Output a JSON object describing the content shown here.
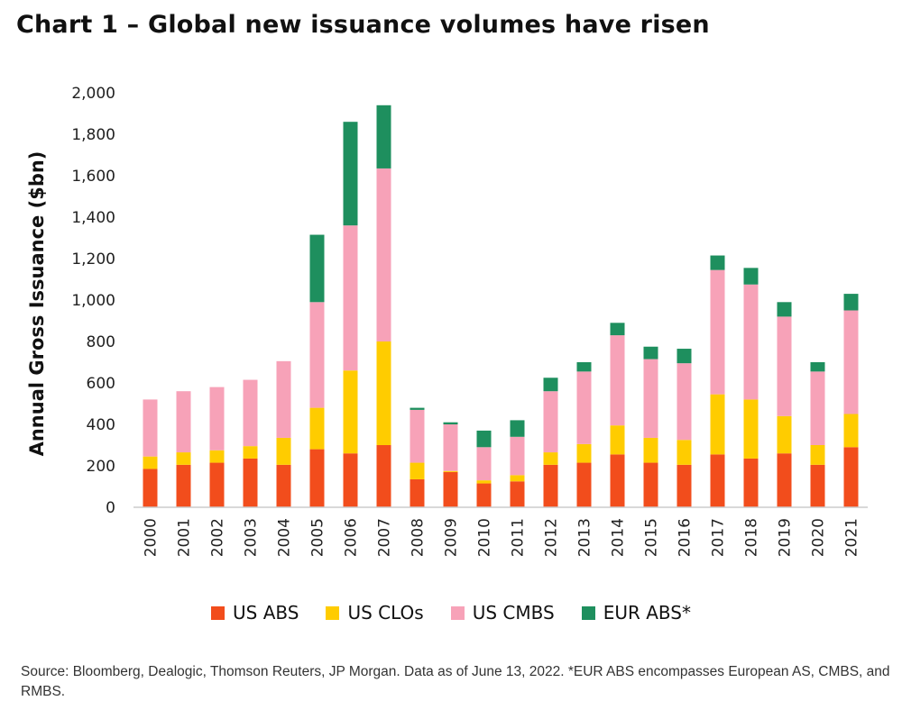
{
  "title": "Chart 1 – Global new issuance volumes have risen",
  "source": "Source: Bloomberg, Dealogic, Thomson Reuters, JP Morgan. Data as of June 13, 2022. *EUR ABS encompasses European AS, CMBS, and RMBS.",
  "chart_data": {
    "type": "bar",
    "stacked": true,
    "title": "Chart 1 – Global new issuance volumes have risen",
    "ylabel": "Annual Gross Issuance ($bn)",
    "xlabel": "",
    "ylim": [
      0,
      2000
    ],
    "yticks": [
      0,
      200,
      400,
      600,
      800,
      1000,
      1200,
      1400,
      1600,
      1800,
      2000
    ],
    "ytick_labels": [
      "0",
      "200",
      "400",
      "600",
      "800",
      "1,000",
      "1,200",
      "1,400",
      "1,600",
      "1,800",
      "2,000"
    ],
    "grid": false,
    "legend_position": "bottom",
    "categories": [
      "2000",
      "2001",
      "2002",
      "2003",
      "2004",
      "2005",
      "2006",
      "2007",
      "2008",
      "2009",
      "2010",
      "2011",
      "2012",
      "2013",
      "2014",
      "2015",
      "2016",
      "2017",
      "2018",
      "2019",
      "2020",
      "2021"
    ],
    "series": [
      {
        "name": "US ABS",
        "color": "#f24d1c",
        "values": [
          185,
          205,
          215,
          235,
          205,
          280,
          260,
          300,
          135,
          170,
          115,
          125,
          205,
          215,
          255,
          215,
          205,
          255,
          235,
          260,
          205,
          290
        ]
      },
      {
        "name": "US CLOs",
        "color": "#ffcc00",
        "values": [
          60,
          60,
          60,
          60,
          130,
          200,
          400,
          500,
          80,
          5,
          15,
          30,
          60,
          90,
          140,
          120,
          120,
          290,
          285,
          180,
          95,
          160
        ]
      },
      {
        "name": "US CMBS",
        "color": "#f7a2b8",
        "values": [
          275,
          295,
          305,
          320,
          370,
          510,
          700,
          835,
          255,
          225,
          160,
          185,
          295,
          350,
          435,
          380,
          370,
          600,
          555,
          480,
          355,
          500
        ]
      },
      {
        "name": "EUR ABS*",
        "color": "#1e8f5e",
        "values": [
          0,
          0,
          0,
          0,
          0,
          325,
          500,
          305,
          10,
          10,
          80,
          80,
          65,
          45,
          60,
          60,
          70,
          70,
          80,
          70,
          45,
          80
        ]
      }
    ]
  }
}
